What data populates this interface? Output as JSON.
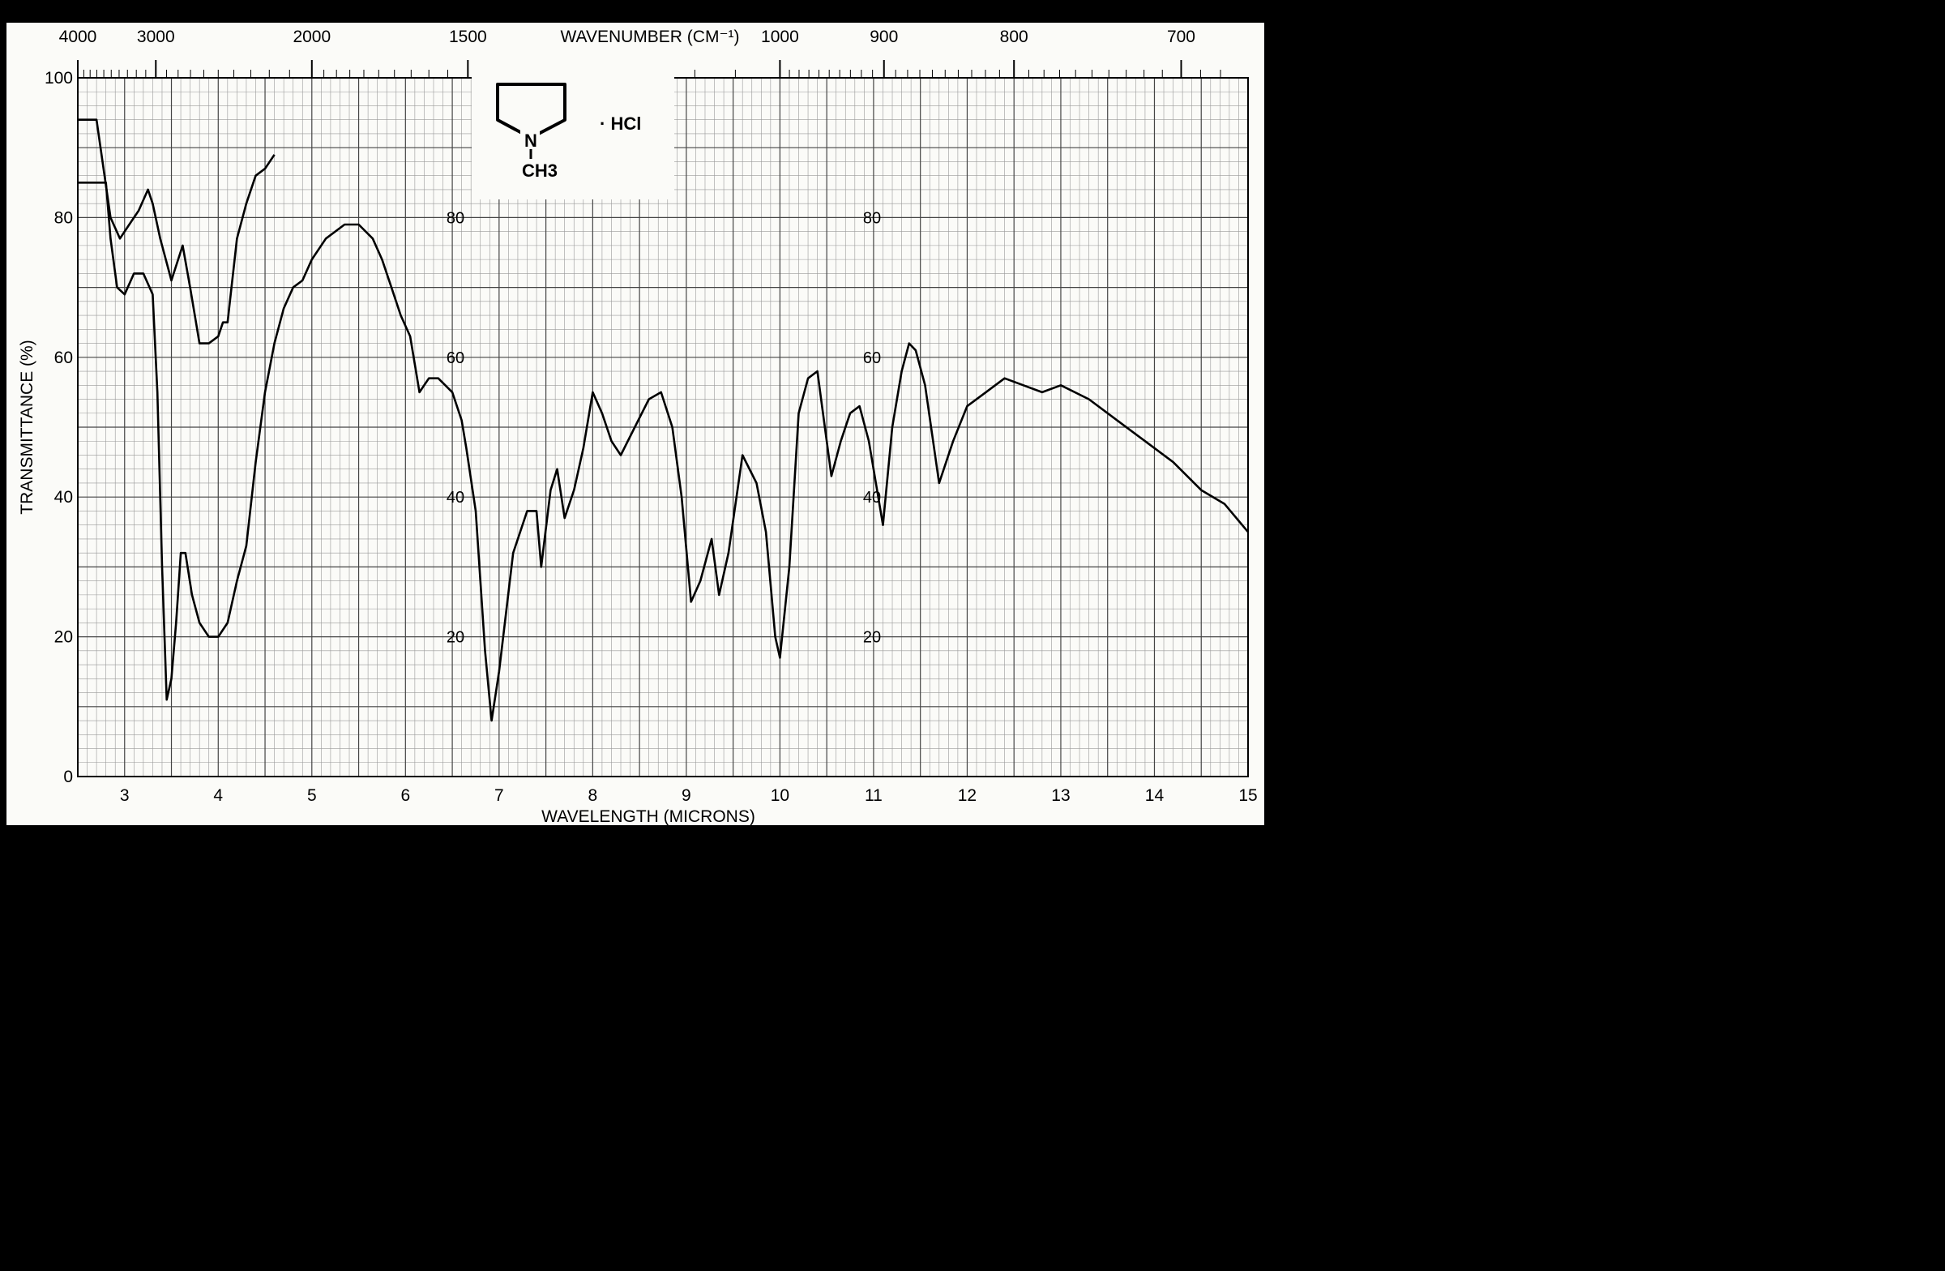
{
  "chart_data": {
    "type": "line",
    "title": "",
    "xlabel": "WAVELENGTH (MICRONS)",
    "ylabel": "TRANSMITTANCE (%)",
    "top_axis_label": "WAVENUMBER (CM⁻¹)",
    "xlim": [
      2.5,
      15
    ],
    "ylim": [
      0,
      100
    ],
    "x_ticks": [
      3,
      4,
      5,
      6,
      7,
      8,
      9,
      10,
      11,
      12,
      13,
      14,
      15
    ],
    "x_tick_labels": [
      "3",
      "4",
      "5",
      "6",
      "7",
      "8",
      "9",
      "10",
      "11",
      "12",
      "13",
      "14",
      "15"
    ],
    "y_ticks": [
      0,
      20,
      40,
      60,
      80,
      100
    ],
    "y_tick_labels": [
      "0",
      "20",
      "40",
      "60",
      "80",
      "100"
    ],
    "inner_y_labels": [
      "80",
      "60",
      "40",
      "20"
    ],
    "top_ticks": [
      {
        "wavenumber": 4000,
        "label": "4000"
      },
      {
        "wavenumber": 3000,
        "label": "3000"
      },
      {
        "wavenumber": 2000,
        "label": "2000"
      },
      {
        "wavenumber": 1500,
        "label": "1500"
      },
      {
        "wavenumber": 1000,
        "label": "1000"
      },
      {
        "wavenumber": 900,
        "label": "900"
      },
      {
        "wavenumber": 800,
        "label": "800"
      },
      {
        "wavenumber": 700,
        "label": "700"
      }
    ],
    "grid": true,
    "compound": {
      "ring_atom": "N",
      "substituent": "CH3",
      "salt": "· HCl"
    },
    "series": [
      {
        "name": "",
        "x": [
          2.5,
          2.65,
          2.8,
          2.85,
          2.92,
          3.0,
          3.1,
          3.2,
          3.3,
          3.35,
          3.4,
          3.45,
          3.5,
          3.55,
          3.6,
          3.65,
          3.72,
          3.8,
          3.9,
          4.0,
          4.1,
          4.2,
          4.3,
          4.4,
          4.5,
          4.6,
          4.7,
          4.8,
          4.9,
          5.0,
          5.15,
          5.35,
          5.5,
          5.65,
          5.75,
          5.85,
          5.95,
          6.05,
          6.15,
          6.25,
          6.35,
          6.5,
          6.6,
          6.65,
          6.75,
          6.85,
          6.92,
          7.0,
          7.15,
          7.3,
          7.4,
          7.45,
          7.55,
          7.62,
          7.7,
          7.8,
          7.9,
          8.0,
          8.1,
          8.2,
          8.3,
          8.45,
          8.6,
          8.73,
          8.85,
          8.95,
          9.05,
          9.15,
          9.27,
          9.35,
          9.45,
          9.6,
          9.75,
          9.85,
          9.95,
          10.0,
          10.1,
          10.2,
          10.3,
          10.4,
          10.48,
          10.55,
          10.65,
          10.75,
          10.85,
          10.95,
          11.05,
          11.1,
          11.2,
          11.3,
          11.38,
          11.45,
          11.55,
          11.7,
          11.85,
          12.0,
          12.2,
          12.4,
          12.6,
          12.8,
          13.0,
          13.3,
          13.6,
          13.9,
          14.2,
          14.5,
          14.75,
          15.0
        ],
        "y": [
          85,
          85,
          85,
          77,
          70,
          69,
          72,
          72,
          69,
          55,
          30,
          11,
          14,
          22,
          32,
          32,
          26,
          22,
          20,
          20,
          22,
          28,
          33,
          45,
          55,
          62,
          67,
          70,
          71,
          74,
          77,
          79,
          79,
          77,
          74,
          70,
          66,
          63,
          55,
          57,
          57,
          55,
          51,
          47,
          38,
          18,
          8,
          15,
          32,
          38,
          38,
          30,
          41,
          44,
          37,
          41,
          47,
          55,
          52,
          48,
          46,
          50,
          54,
          55,
          50,
          40,
          25,
          28,
          34,
          26,
          32,
          46,
          42,
          35,
          20,
          17,
          30,
          52,
          57,
          58,
          50,
          43,
          48,
          52,
          53,
          48,
          40,
          36,
          50,
          58,
          62,
          61,
          56,
          42,
          48,
          53,
          55,
          57,
          56,
          55,
          56,
          54,
          51,
          48,
          45,
          41,
          39,
          35
        ]
      },
      {
        "name": "",
        "x": [
          2.5,
          2.7,
          2.85,
          2.95,
          3.05,
          3.15,
          3.25,
          3.3,
          3.38,
          3.5,
          3.62,
          3.7,
          3.8,
          3.9,
          4.0,
          4.05,
          4.1,
          4.2,
          4.3,
          4.4,
          4.5,
          4.6
        ],
        "y": [
          94,
          94,
          80,
          77,
          79,
          81,
          84,
          82,
          77,
          71,
          76,
          70,
          62,
          62,
          63,
          65,
          65,
          77,
          82,
          86,
          87,
          89
        ]
      }
    ]
  }
}
